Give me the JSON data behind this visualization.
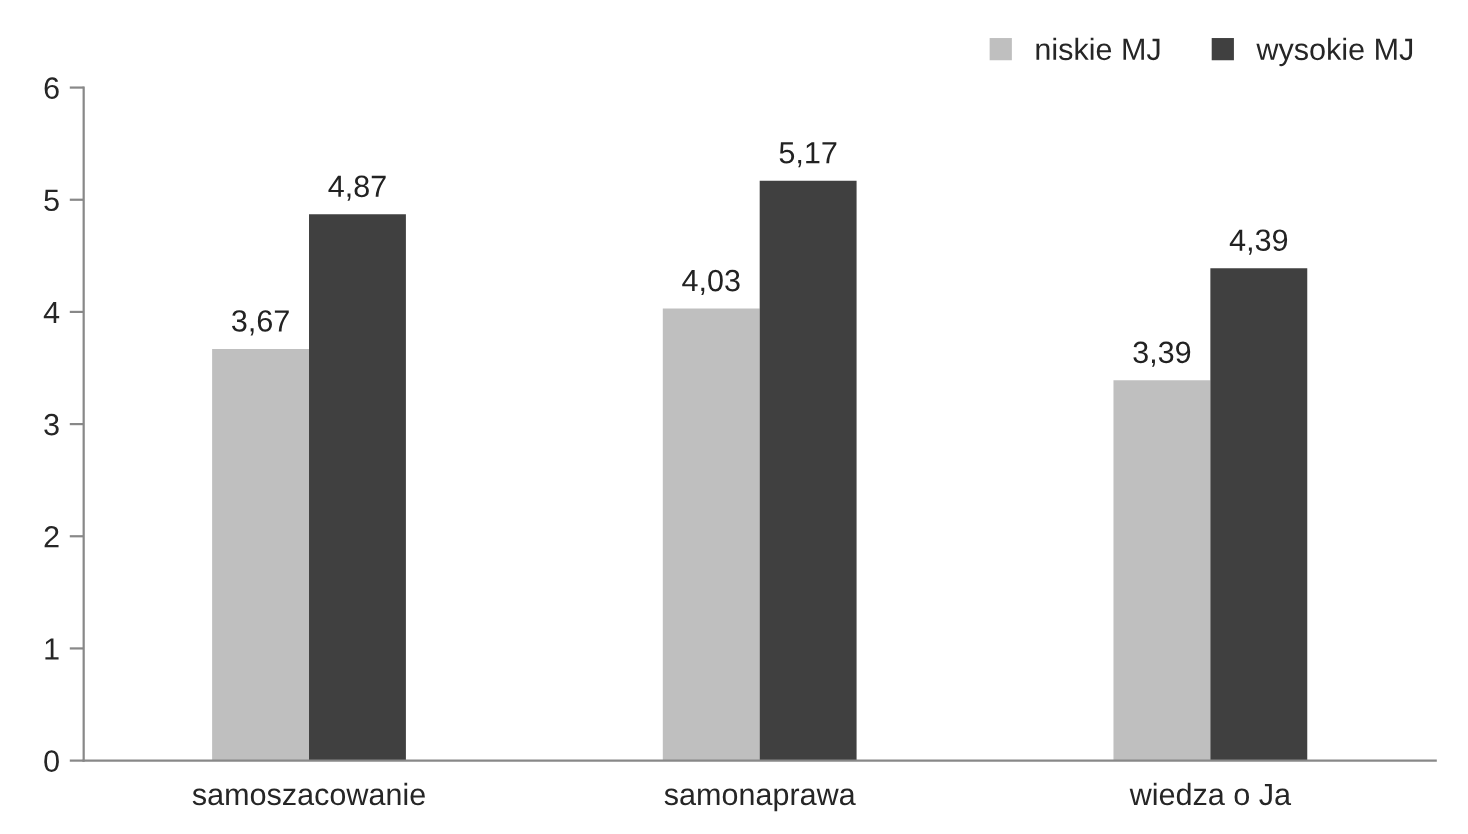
{
  "chart_data": {
    "type": "bar",
    "categories": [
      "samoszacowanie",
      "samonaprawa",
      "wiedza o Ja"
    ],
    "series": [
      {
        "name": "niskie MJ",
        "color": "#bfbfbf",
        "values": [
          3.67,
          4.03,
          3.39
        ],
        "value_labels": [
          "3,67",
          "4,03",
          "3,39"
        ]
      },
      {
        "name": "wysokie MJ",
        "color": "#404040",
        "values": [
          4.87,
          5.17,
          4.39
        ],
        "value_labels": [
          "4,87",
          "5,17",
          "4,39"
        ]
      }
    ],
    "ylim": [
      0,
      6
    ],
    "yticks": [
      0,
      1,
      2,
      3,
      4,
      5,
      6
    ],
    "grid": false,
    "legend": "top right"
  }
}
